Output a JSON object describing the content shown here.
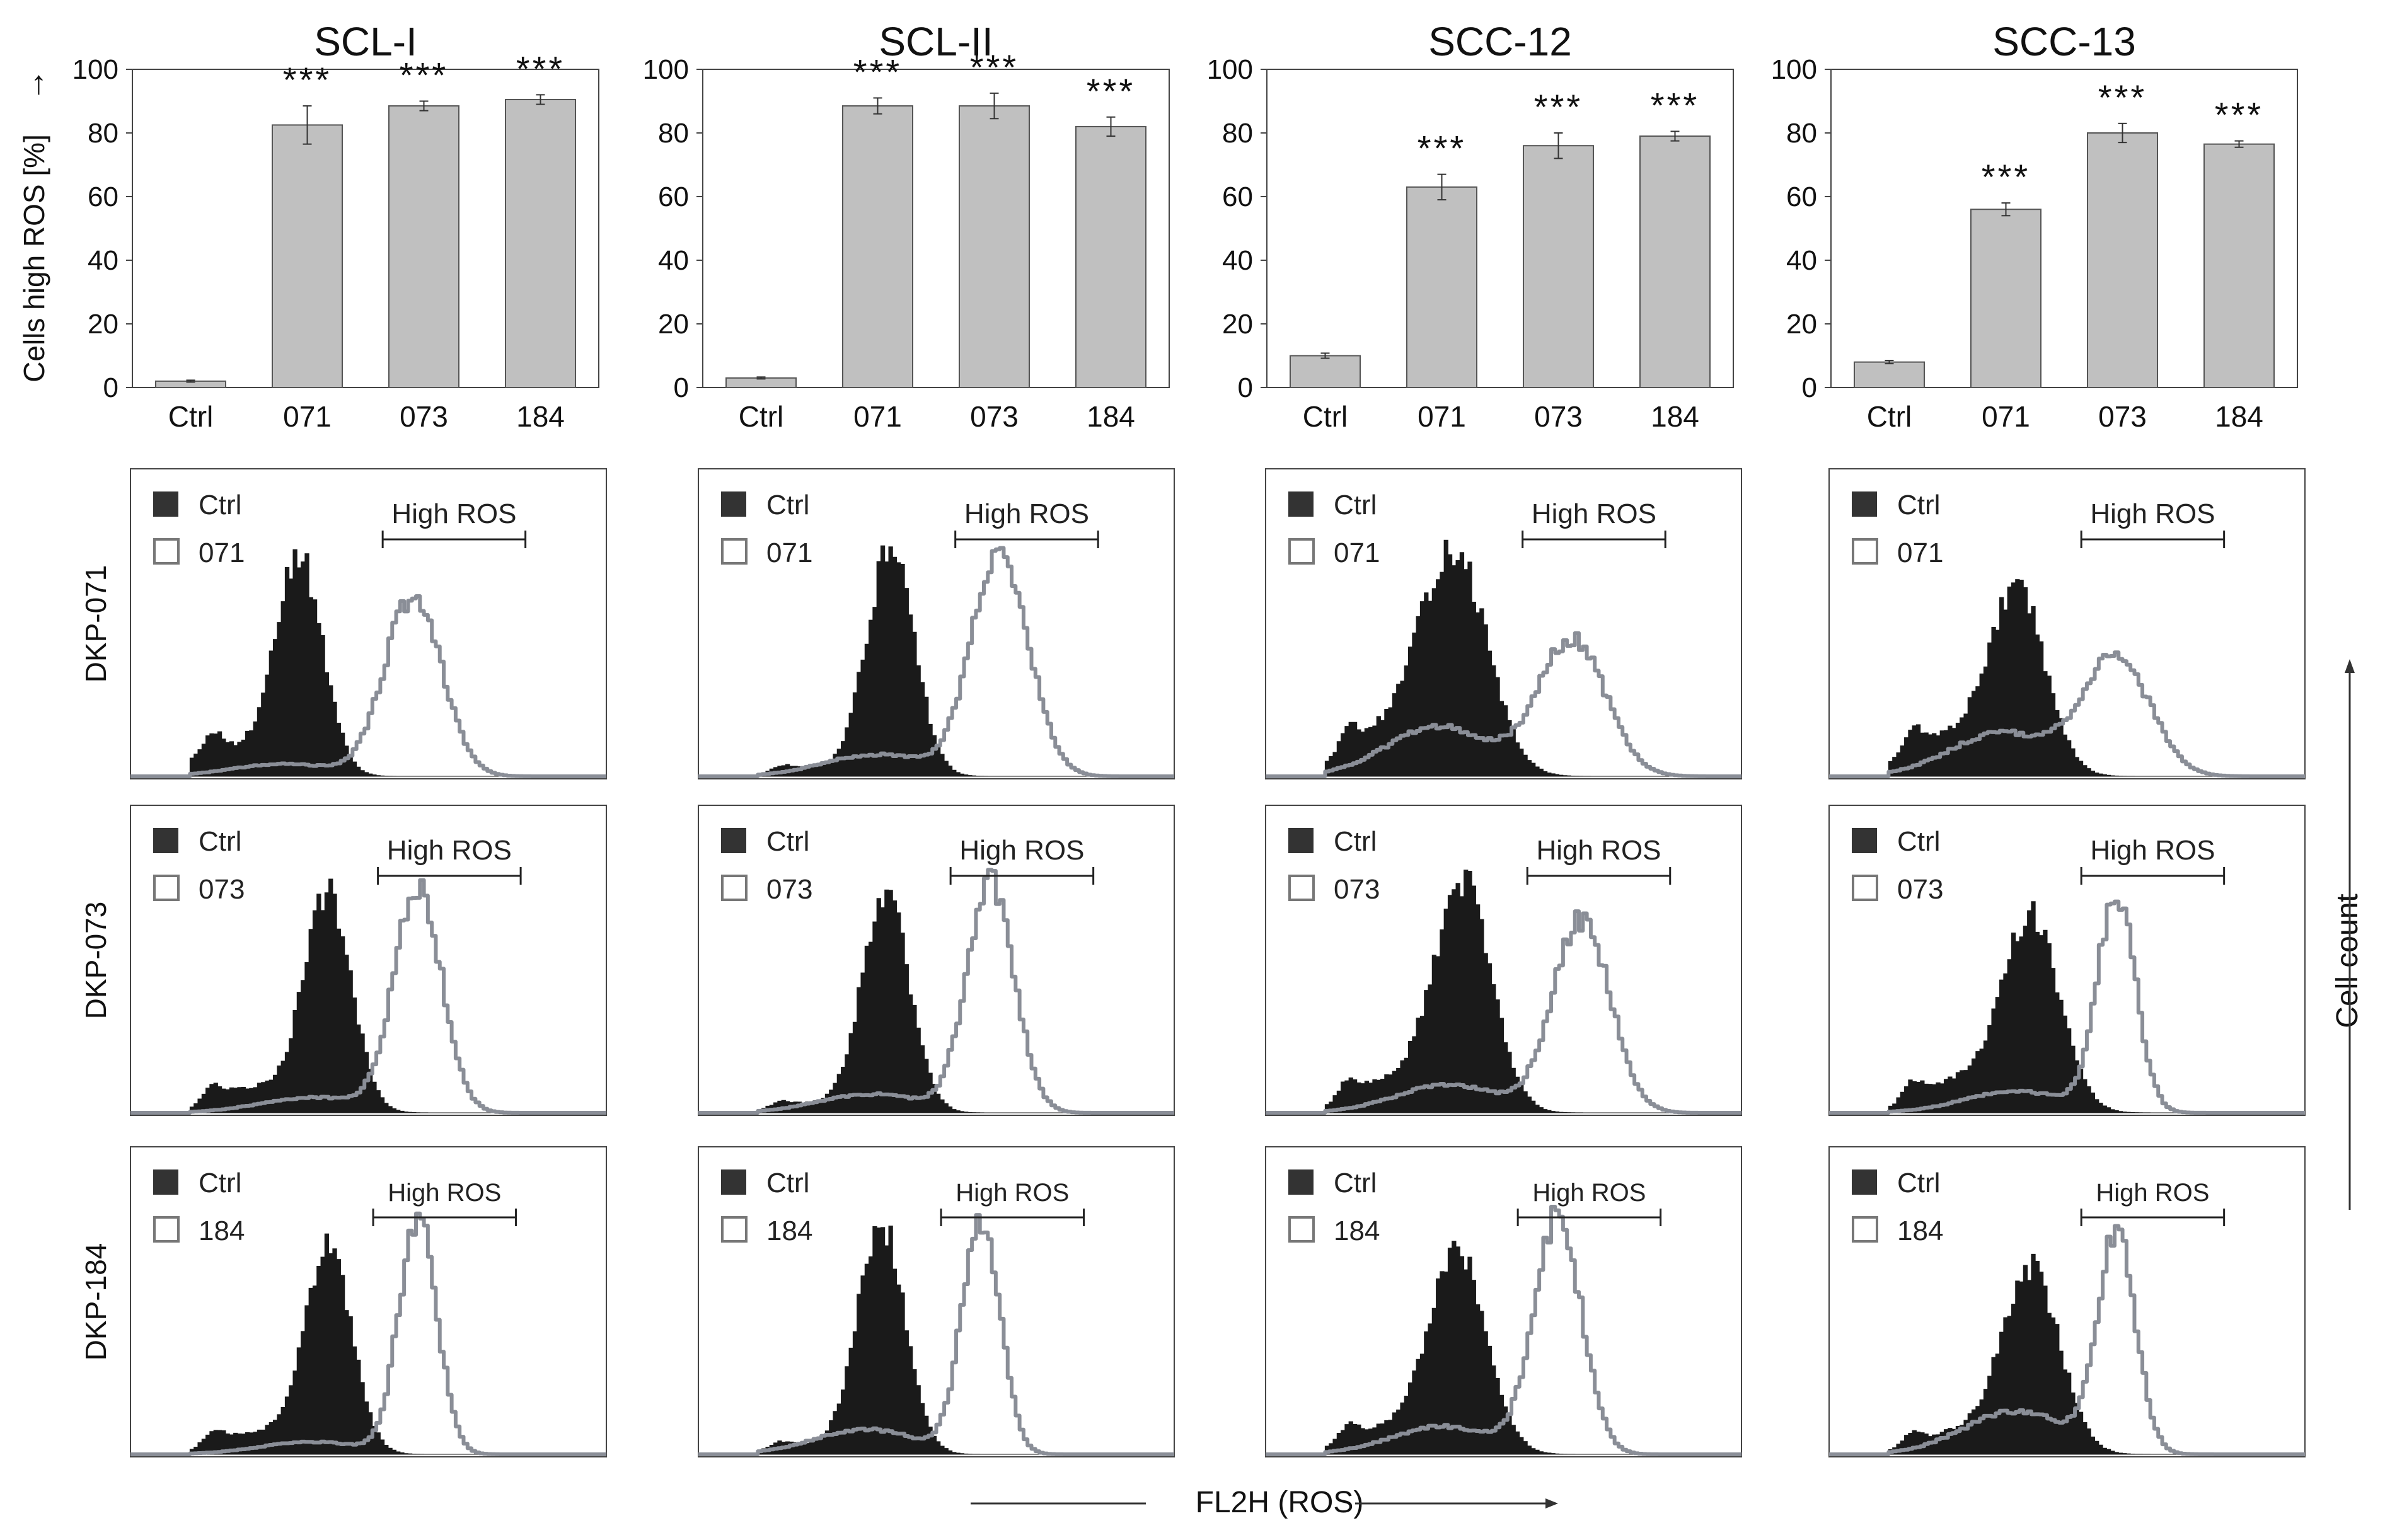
{
  "figure": {
    "y_axis_title": "Cells high ROS [%]",
    "y_axis_arrow": "→",
    "x_axis_title": "FL2H (ROS)",
    "right_axis_title": "Cell count",
    "row_labels": [
      "DKP-071",
      "DKP-073",
      "DKP-184"
    ],
    "colors": {
      "bar_fill": "#c0c0c0",
      "bar_stroke": "#555555",
      "ctrl_fill": "#1a1a1a",
      "treated_line": "#8a8e97"
    }
  },
  "chart_data": [
    {
      "type": "bar",
      "title": "SCL-I",
      "categories": [
        "Ctrl",
        "071",
        "073",
        "184"
      ],
      "values": [
        2,
        82.5,
        88.5,
        90.5
      ],
      "errors": [
        0.3,
        6,
        1.5,
        1.5
      ],
      "annotations": [
        "",
        "***",
        "***",
        "***"
      ],
      "ylim": [
        0,
        100
      ],
      "yticks": [
        "0",
        "20",
        "40",
        "60",
        "80",
        "100"
      ],
      "ylabel": "Cells high ROS [%]"
    },
    {
      "type": "bar",
      "title": "SCL-II",
      "categories": [
        "Ctrl",
        "071",
        "073",
        "184"
      ],
      "values": [
        3,
        88.5,
        88.5,
        82
      ],
      "errors": [
        0.3,
        2.5,
        4,
        3
      ],
      "annotations": [
        "",
        "***",
        "***",
        "***"
      ],
      "ylim": [
        0,
        100
      ],
      "yticks": [
        "0",
        "20",
        "40",
        "60",
        "80",
        "100"
      ],
      "ylabel": ""
    },
    {
      "type": "bar",
      "title": "SCC-12",
      "categories": [
        "Ctrl",
        "071",
        "073",
        "184"
      ],
      "values": [
        10,
        63,
        76,
        79
      ],
      "errors": [
        0.8,
        4,
        4,
        1.5
      ],
      "annotations": [
        "",
        "***",
        "***",
        "***"
      ],
      "ylim": [
        0,
        100
      ],
      "yticks": [
        "0",
        "20",
        "40",
        "60",
        "80",
        "100"
      ],
      "ylabel": ""
    },
    {
      "type": "bar",
      "title": "SCC-13",
      "categories": [
        "Ctrl",
        "071",
        "073",
        "184"
      ],
      "values": [
        8,
        56,
        80,
        76.5
      ],
      "errors": [
        0.5,
        2,
        3,
        1
      ],
      "annotations": [
        "",
        "***",
        "***",
        "***"
      ],
      "ylim": [
        0,
        100
      ],
      "yticks": [
        "0",
        "20",
        "40",
        "60",
        "80",
        "100"
      ],
      "ylabel": ""
    }
  ],
  "histograms": {
    "legend_ctrl": "Ctrl",
    "gate_label": "High ROS",
    "rows": [
      {
        "row_label": "DKP-071",
        "treatment": "071",
        "panels": [
          {
            "cell_line": "SCL-I",
            "ctrl": {
              "peak": 0.35,
              "width": 0.05,
              "height": 0.7,
              "shoulder": 0.09
            },
            "treated": {
              "peak": 0.59,
              "width": 0.06,
              "height": 0.58,
              "low": 0.04
            },
            "gate": [
              0.53,
              0.83
            ]
          },
          {
            "cell_line": "SCL-II",
            "ctrl": {
              "peak": 0.4,
              "width": 0.05,
              "height": 0.73,
              "shoulder": 0.03
            },
            "treated": {
              "peak": 0.63,
              "width": 0.06,
              "height": 0.72,
              "low": 0.07
            },
            "gate": [
              0.54,
              0.84
            ]
          },
          {
            "cell_line": "SCC-12",
            "ctrl": {
              "peak": 0.39,
              "width": 0.07,
              "height": 0.73,
              "shoulder": 0.12
            },
            "treated": {
              "peak": 0.64,
              "width": 0.07,
              "height": 0.44,
              "low": 0.16
            },
            "gate": [
              0.54,
              0.84
            ]
          },
          {
            "cell_line": "SCC-13",
            "ctrl": {
              "peak": 0.39,
              "width": 0.06,
              "height": 0.6,
              "shoulder": 0.12
            },
            "treated": {
              "peak": 0.6,
              "width": 0.07,
              "height": 0.38,
              "low": 0.14
            },
            "gate": [
              0.53,
              0.83
            ]
          }
        ]
      },
      {
        "row_label": "DKP-073",
        "treatment": "073",
        "panels": [
          {
            "cell_line": "SCL-I",
            "ctrl": {
              "peak": 0.41,
              "width": 0.05,
              "height": 0.7,
              "shoulder": 0.08
            },
            "treated": {
              "peak": 0.6,
              "width": 0.05,
              "height": 0.72,
              "low": 0.05
            },
            "gate": [
              0.52,
              0.82
            ]
          },
          {
            "cell_line": "SCL-II",
            "ctrl": {
              "peak": 0.39,
              "width": 0.05,
              "height": 0.7,
              "shoulder": 0.03
            },
            "treated": {
              "peak": 0.61,
              "width": 0.05,
              "height": 0.74,
              "low": 0.06
            },
            "gate": [
              0.53,
              0.83
            ]
          },
          {
            "cell_line": "SCC-12",
            "ctrl": {
              "peak": 0.41,
              "width": 0.06,
              "height": 0.75,
              "shoulder": 0.1
            },
            "treated": {
              "peak": 0.66,
              "width": 0.06,
              "height": 0.62,
              "low": 0.09
            },
            "gate": [
              0.55,
              0.85
            ]
          },
          {
            "cell_line": "SCC-13",
            "ctrl": {
              "peak": 0.42,
              "width": 0.06,
              "height": 0.63,
              "shoulder": 0.1
            },
            "treated": {
              "peak": 0.6,
              "width": 0.04,
              "height": 0.7,
              "low": 0.07
            },
            "gate": [
              0.53,
              0.83
            ]
          }
        ]
      },
      {
        "row_label": "DKP-184",
        "treatment": "184",
        "panels": [
          {
            "cell_line": "SCL-I",
            "ctrl": {
              "peak": 0.41,
              "width": 0.05,
              "height": 0.66,
              "shoulder": 0.07
            },
            "treated": {
              "peak": 0.6,
              "width": 0.04,
              "height": 0.76,
              "low": 0.04
            },
            "gate": [
              0.51,
              0.81
            ]
          },
          {
            "cell_line": "SCL-II",
            "ctrl": {
              "peak": 0.38,
              "width": 0.05,
              "height": 0.74,
              "shoulder": 0.03
            },
            "treated": {
              "peak": 0.59,
              "width": 0.04,
              "height": 0.75,
              "low": 0.08
            },
            "gate": [
              0.51,
              0.81
            ]
          },
          {
            "cell_line": "SCC-12",
            "ctrl": {
              "peak": 0.4,
              "width": 0.06,
              "height": 0.65,
              "shoulder": 0.08
            },
            "treated": {
              "peak": 0.61,
              "width": 0.05,
              "height": 0.76,
              "low": 0.09
            },
            "gate": [
              0.53,
              0.83
            ]
          },
          {
            "cell_line": "SCC-13",
            "ctrl": {
              "peak": 0.42,
              "width": 0.06,
              "height": 0.6,
              "shoulder": 0.07
            },
            "treated": {
              "peak": 0.6,
              "width": 0.04,
              "height": 0.7,
              "low": 0.14
            },
            "gate": [
              0.53,
              0.83
            ]
          }
        ]
      }
    ]
  }
}
